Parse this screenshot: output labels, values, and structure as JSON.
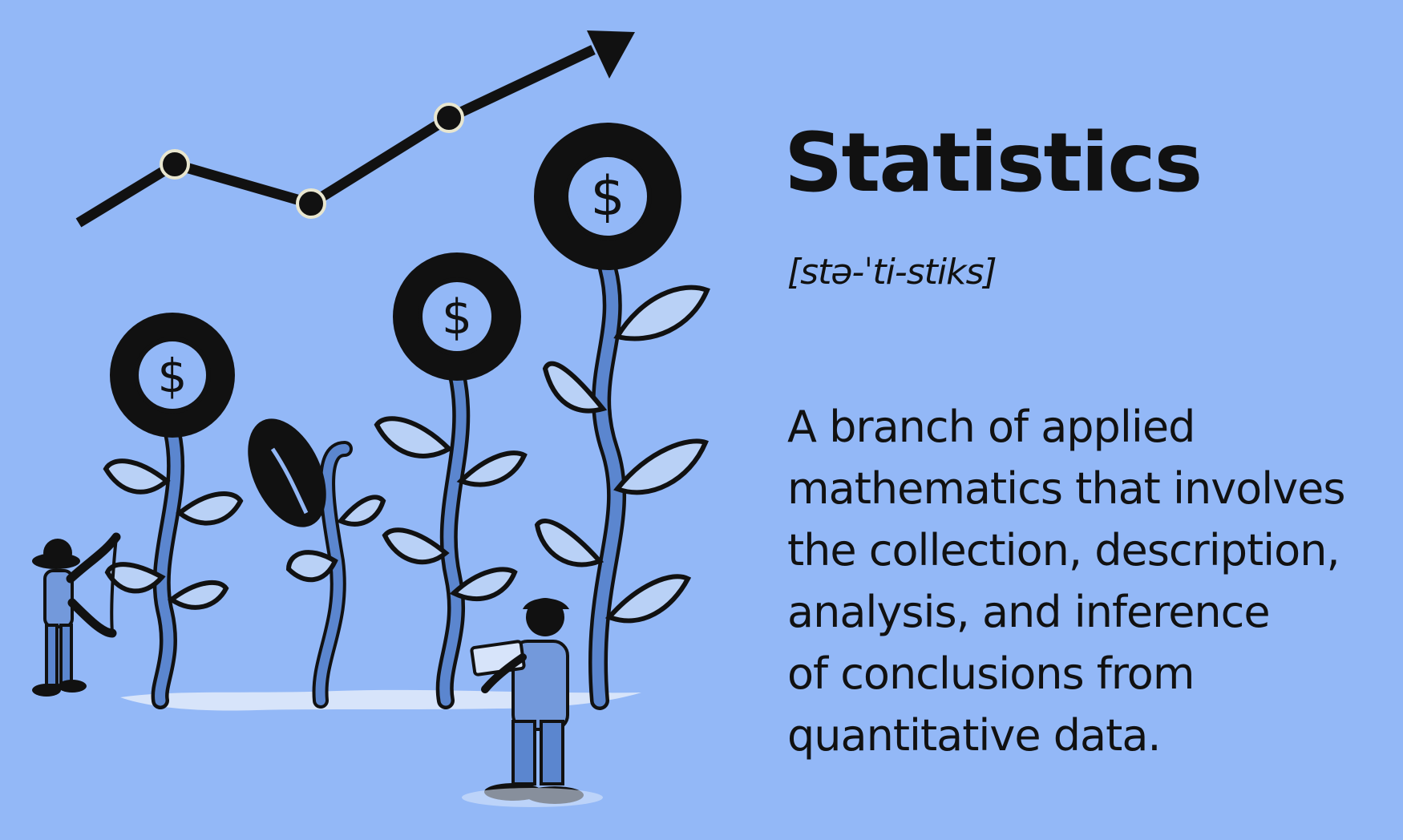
{
  "colors": {
    "background": "#93b8f7",
    "ink": "#111111",
    "mid_blue": "#5b86cf",
    "light_blue": "#b9d1f6",
    "dollar_circle": "#93b8f7",
    "ground": "#d7e4fa"
  },
  "term": "Statistics",
  "pronunciation": "[stə-ˈti-stiks]",
  "definition_lines": [
    "A branch of applied",
    "mathematics that involves",
    "the collection, description,",
    "analysis, and inference",
    "of conclusions from",
    "quantitative data."
  ],
  "illustration": {
    "dollar_symbol": "$",
    "trend_icon": "upward-trend-arrow-icon",
    "flower_icon": "dollar-flower-icon"
  }
}
